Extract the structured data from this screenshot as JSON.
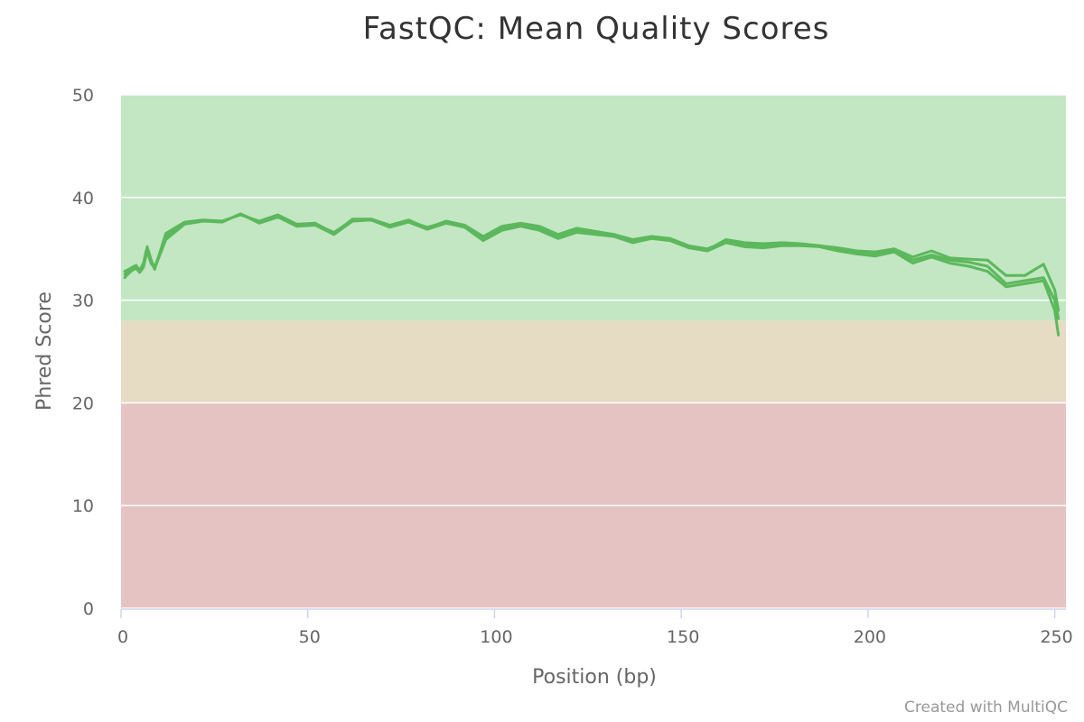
{
  "credit": "Created with MultiQC",
  "colors": {
    "band_good": "#c3e6c3",
    "band_warn": "#e6dcc3",
    "band_fail": "#e6c3c3",
    "series": "#5cb85c",
    "grid": "#ffffff",
    "axis": "#ccd6eb"
  },
  "chart_data": {
    "type": "line",
    "title": "FastQC: Mean Quality Scores",
    "xlabel": "Position (bp)",
    "ylabel": "Phred Score",
    "xlim": [
      0,
      253
    ],
    "ylim": [
      0,
      50
    ],
    "x_ticks": [
      0,
      50,
      100,
      150,
      200,
      250
    ],
    "y_ticks": [
      0,
      10,
      20,
      30,
      40,
      50
    ],
    "grid": true,
    "bands": [
      {
        "from": 28,
        "to": 50,
        "label": "good"
      },
      {
        "from": 20,
        "to": 28,
        "label": "warn"
      },
      {
        "from": 0,
        "to": 20,
        "label": "fail"
      }
    ],
    "series": [
      {
        "x": [
          1,
          2,
          3,
          4,
          5,
          6,
          7,
          8,
          9,
          12,
          17,
          22,
          27,
          32,
          37,
          42,
          47,
          52,
          57,
          62,
          67,
          72,
          77,
          82,
          87,
          92,
          97,
          102,
          107,
          112,
          117,
          122,
          127,
          132,
          137,
          142,
          147,
          152,
          157,
          162,
          167,
          172,
          177,
          182,
          187,
          192,
          197,
          202,
          207,
          212,
          217,
          222,
          227,
          232,
          237,
          242,
          247,
          250,
          251
        ],
        "values": [
          32.5,
          32.8,
          33.0,
          33.2,
          33.0,
          33.3,
          35.0,
          33.8,
          33.2,
          36.2,
          37.5,
          37.8,
          37.6,
          38.4,
          37.6,
          38.2,
          37.3,
          37.4,
          36.6,
          37.8,
          37.8,
          37.2,
          37.7,
          37.1,
          37.6,
          37.2,
          36.0,
          37.0,
          37.3,
          37.0,
          36.2,
          36.8,
          36.6,
          36.4,
          35.9,
          36.2,
          36.0,
          35.3,
          35.0,
          35.7,
          35.4,
          35.3,
          35.4,
          35.4,
          35.3,
          35.0,
          34.7,
          34.5,
          34.8,
          33.9,
          34.4,
          33.9,
          33.7,
          33.3,
          31.6,
          31.9,
          32.2,
          30.0,
          28.2
        ]
      },
      {
        "x": [
          1,
          2,
          3,
          4,
          5,
          6,
          7,
          8,
          9,
          12,
          17,
          22,
          27,
          32,
          37,
          42,
          47,
          52,
          57,
          62,
          67,
          72,
          77,
          82,
          87,
          92,
          97,
          102,
          107,
          112,
          117,
          122,
          127,
          132,
          137,
          142,
          147,
          152,
          157,
          162,
          167,
          172,
          177,
          182,
          187,
          192,
          197,
          202,
          207,
          212,
          217,
          222,
          227,
          232,
          237,
          242,
          247,
          250,
          251
        ],
        "values": [
          32.8,
          33.0,
          33.2,
          33.4,
          32.9,
          33.6,
          35.2,
          34.0,
          33.0,
          36.5,
          37.6,
          37.8,
          37.7,
          38.3,
          37.7,
          38.3,
          37.4,
          37.5,
          36.5,
          37.9,
          37.9,
          37.3,
          37.8,
          37.0,
          37.7,
          37.3,
          36.2,
          37.2,
          37.5,
          37.2,
          36.4,
          37.0,
          36.7,
          36.4,
          35.8,
          36.1,
          35.9,
          35.2,
          34.9,
          35.9,
          35.6,
          35.5,
          35.6,
          35.5,
          35.3,
          35.1,
          34.8,
          34.7,
          35.0,
          34.2,
          34.8,
          34.1,
          34.0,
          33.9,
          32.4,
          32.4,
          33.5,
          31.0,
          29.0
        ]
      },
      {
        "x": [
          1,
          2,
          3,
          4,
          5,
          6,
          7,
          8,
          9,
          12,
          17,
          22,
          27,
          32,
          37,
          42,
          47,
          52,
          57,
          62,
          67,
          72,
          77,
          82,
          87,
          92,
          97,
          102,
          107,
          112,
          117,
          122,
          127,
          132,
          137,
          142,
          147,
          152,
          157,
          162,
          167,
          172,
          177,
          182,
          187,
          192,
          197,
          202,
          207,
          212,
          217,
          222,
          227,
          232,
          237,
          242,
          247,
          250,
          251
        ],
        "values": [
          32.2,
          32.6,
          32.9,
          33.1,
          32.7,
          33.2,
          34.8,
          33.6,
          33.1,
          35.9,
          37.4,
          37.7,
          37.6,
          38.4,
          37.5,
          38.1,
          37.2,
          37.3,
          36.4,
          37.7,
          37.8,
          37.1,
          37.6,
          36.9,
          37.5,
          37.1,
          35.8,
          36.8,
          37.2,
          36.8,
          36.0,
          36.6,
          36.4,
          36.2,
          35.6,
          36.0,
          35.8,
          35.1,
          34.8,
          35.6,
          35.2,
          35.1,
          35.3,
          35.3,
          35.2,
          34.8,
          34.5,
          34.3,
          34.7,
          33.6,
          34.2,
          33.6,
          33.3,
          32.8,
          31.3,
          31.6,
          31.9,
          29.0,
          26.6
        ]
      }
    ]
  }
}
